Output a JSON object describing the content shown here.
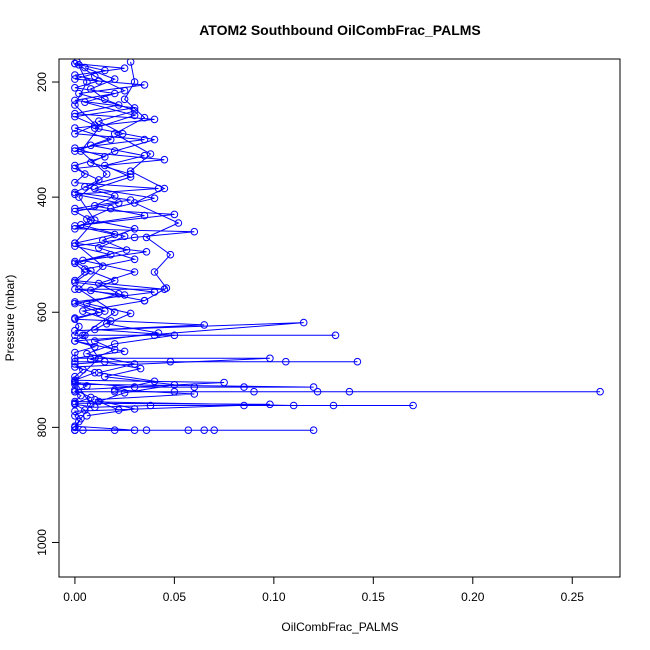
{
  "chart_data": {
    "type": "scatter",
    "title": "ATOM2 Southbound OilCombFrac_PALMS",
    "xlabel": "OilCombFrac_PALMS",
    "ylabel": "Pressure (mbar)",
    "xlim": [
      -0.008,
      0.274
    ],
    "ylim": [
      1060,
      160
    ],
    "y_reversed": true,
    "x_ticks": [
      0.0,
      0.05,
      0.1,
      0.15,
      0.2,
      0.25
    ],
    "x_tick_labels": [
      "0.00",
      "0.05",
      "0.10",
      "0.15",
      "0.20",
      "0.25"
    ],
    "y_ticks": [
      200,
      400,
      600,
      800,
      1000
    ],
    "y_tick_labels": [
      "200",
      "400",
      "600",
      "800",
      "1000"
    ],
    "grid": false,
    "legend": "none",
    "style": {
      "marker": "open-circle",
      "line": true,
      "color": "#0000ff"
    },
    "series": [
      {
        "points": [
          [
            0.0,
            805
          ],
          [
            0.004,
            805
          ],
          [
            0.02,
            805
          ],
          [
            0.036,
            805
          ],
          [
            0.12,
            805
          ],
          [
            0.07,
            805
          ],
          [
            0.057,
            805
          ],
          [
            0.065,
            805
          ],
          [
            0.0,
            805
          ],
          [
            0.002,
            790
          ],
          [
            0.0,
            780
          ],
          [
            0.005,
            770
          ],
          [
            0.0,
            760
          ],
          [
            0.01,
            765
          ],
          [
            0.038,
            762
          ],
          [
            0.085,
            762
          ],
          [
            0.17,
            762
          ],
          [
            0.13,
            762
          ],
          [
            0.11,
            762
          ],
          [
            0.0,
            755
          ],
          [
            0.003,
            745
          ],
          [
            0.0,
            738
          ],
          [
            0.02,
            738
          ],
          [
            0.05,
            738
          ],
          [
            0.09,
            738
          ],
          [
            0.122,
            738
          ],
          [
            0.138,
            738
          ],
          [
            0.264,
            738
          ],
          [
            0.0,
            738
          ],
          [
            0.006,
            728
          ],
          [
            0.0,
            722
          ],
          [
            0.03,
            730
          ],
          [
            0.06,
            730
          ],
          [
            0.085,
            730
          ],
          [
            0.12,
            730
          ],
          [
            0.0,
            725
          ],
          [
            0.0,
            712
          ],
          [
            0.004,
            700
          ],
          [
            0.0,
            690
          ],
          [
            0.015,
            686
          ],
          [
            0.048,
            686
          ],
          [
            0.106,
            686
          ],
          [
            0.142,
            686
          ],
          [
            0.0,
            686
          ],
          [
            0.0,
            670
          ],
          [
            0.01,
            660
          ],
          [
            0.0,
            650
          ],
          [
            0.005,
            640
          ],
          [
            0.04,
            640
          ],
          [
            0.131,
            640
          ],
          [
            0.0,
            640
          ],
          [
            0.002,
            625
          ],
          [
            0.0,
            610
          ],
          [
            0.012,
            600
          ],
          [
            0.0,
            585
          ],
          [
            0.025,
            570
          ],
          [
            0.0,
            560
          ],
          [
            0.045,
            560
          ],
          [
            0.0,
            545
          ],
          [
            0.005,
            530
          ],
          [
            0.0,
            515
          ],
          [
            0.018,
            500
          ],
          [
            0.0,
            485
          ],
          [
            0.03,
            470
          ],
          [
            0.06,
            460
          ],
          [
            0.0,
            455
          ],
          [
            0.008,
            440
          ],
          [
            0.0,
            425
          ],
          [
            0.022,
            410
          ],
          [
            0.0,
            395
          ],
          [
            0.042,
            385
          ],
          [
            0.0,
            375
          ],
          [
            0.005,
            360
          ],
          [
            0.0,
            345
          ],
          [
            0.015,
            330
          ],
          [
            0.0,
            315
          ],
          [
            0.035,
            300
          ],
          [
            0.0,
            290
          ],
          [
            0.01,
            275
          ],
          [
            0.0,
            260
          ],
          [
            0.03,
            245
          ],
          [
            0.0,
            232
          ],
          [
            0.02,
            220
          ],
          [
            0.0,
            210
          ],
          [
            0.012,
            198
          ],
          [
            0.0,
            188
          ],
          [
            0.025,
            176
          ],
          [
            0.0,
            168
          ]
        ]
      },
      {
        "points": [
          [
            0.0,
            168
          ],
          [
            0.015,
            180
          ],
          [
            0.0,
            195
          ],
          [
            0.035,
            205
          ],
          [
            0.002,
            220
          ],
          [
            0.022,
            240
          ],
          [
            0.0,
            255
          ],
          [
            0.04,
            265
          ],
          [
            0.0,
            280
          ],
          [
            0.018,
            300
          ],
          [
            0.0,
            320
          ],
          [
            0.045,
            335
          ],
          [
            0.0,
            350
          ],
          [
            0.012,
            370
          ],
          [
            0.0,
            392
          ],
          [
            0.028,
            405
          ],
          [
            0.0,
            420
          ],
          [
            0.05,
            430
          ],
          [
            0.0,
            450
          ],
          [
            0.02,
            465
          ],
          [
            0.0,
            480
          ],
          [
            0.036,
            495
          ],
          [
            0.0,
            512
          ],
          [
            0.008,
            528
          ],
          [
            0.0,
            548
          ],
          [
            0.04,
            565
          ],
          [
            0.0,
            582
          ],
          [
            0.015,
            598
          ],
          [
            0.0,
            612
          ],
          [
            0.065,
            622
          ],
          [
            0.0,
            632
          ],
          [
            0.115,
            618
          ],
          [
            0.0,
            650
          ],
          [
            0.025,
            668
          ],
          [
            0.0,
            680
          ],
          [
            0.098,
            680
          ],
          [
            0.0,
            695
          ],
          [
            0.01,
            705
          ],
          [
            0.0,
            718
          ],
          [
            0.075,
            722
          ],
          [
            0.0,
            735
          ],
          [
            0.008,
            748
          ],
          [
            0.0,
            758
          ],
          [
            0.098,
            760
          ],
          [
            0.0,
            772
          ],
          [
            0.003,
            785
          ],
          [
            0.0,
            798
          ],
          [
            0.03,
            805
          ],
          [
            0.0,
            805
          ]
        ]
      },
      {
        "points": [
          [
            0.002,
            170
          ],
          [
            0.01,
            190
          ],
          [
            0.025,
            215
          ],
          [
            0.005,
            235
          ],
          [
            0.03,
            258
          ],
          [
            0.01,
            280
          ],
          [
            0.04,
            300
          ],
          [
            0.02,
            320
          ],
          [
            0.008,
            340
          ],
          [
            0.028,
            360
          ],
          [
            0.005,
            382
          ],
          [
            0.02,
            398
          ],
          [
            0.01,
            415
          ],
          [
            0.035,
            432
          ],
          [
            0.003,
            448
          ],
          [
            0.025,
            468
          ],
          [
            0.012,
            488
          ],
          [
            0.03,
            508
          ],
          [
            0.005,
            525
          ],
          [
            0.02,
            545
          ],
          [
            0.008,
            562
          ],
          [
            0.035,
            580
          ],
          [
            0.004,
            598
          ],
          [
            0.018,
            615
          ],
          [
            0.01,
            630
          ],
          [
            0.05,
            640
          ],
          [
            0.02,
            655
          ],
          [
            0.006,
            672
          ],
          [
            0.03,
            690
          ],
          [
            0.012,
            705
          ],
          [
            0.04,
            720
          ],
          [
            0.02,
            735
          ],
          [
            0.06,
            742
          ],
          [
            0.01,
            752
          ],
          [
            0.03,
            768
          ],
          [
            0.006,
            780
          ]
        ]
      },
      {
        "points": [
          [
            0.005,
            175
          ],
          [
            0.02,
            195
          ],
          [
            0.008,
            212
          ],
          [
            0.015,
            230
          ],
          [
            0.03,
            250
          ],
          [
            0.012,
            268
          ],
          [
            0.024,
            290
          ],
          [
            0.008,
            310
          ],
          [
            0.035,
            328
          ],
          [
            0.015,
            345
          ],
          [
            0.028,
            365
          ],
          [
            0.01,
            385
          ],
          [
            0.04,
            402
          ],
          [
            0.018,
            420
          ],
          [
            0.006,
            438
          ],
          [
            0.03,
            455
          ],
          [
            0.014,
            475
          ],
          [
            0.026,
            492
          ],
          [
            0.004,
            510
          ],
          [
            0.03,
            530
          ],
          [
            0.012,
            550
          ],
          [
            0.022,
            568
          ],
          [
            0.006,
            585
          ],
          [
            0.028,
            602
          ],
          [
            0.016,
            620
          ],
          [
            0.042,
            636
          ],
          [
            0.01,
            650
          ],
          [
            0.02,
            665
          ],
          [
            0.008,
            682
          ],
          [
            0.033,
            698
          ],
          [
            0.015,
            712
          ],
          [
            0.05,
            726
          ],
          [
            0.025,
            740
          ],
          [
            0.012,
            755
          ],
          [
            0.022,
            770
          ]
        ]
      },
      {
        "points": [
          [
            0.001,
            165
          ],
          [
            0.006,
            200
          ],
          [
            0.0,
            240
          ],
          [
            0.012,
            280
          ],
          [
            0.003,
            320
          ],
          [
            0.016,
            360
          ],
          [
            0.002,
            400
          ],
          [
            0.01,
            440
          ],
          [
            0.0,
            480
          ],
          [
            0.014,
            520
          ],
          [
            0.002,
            560
          ],
          [
            0.02,
            600
          ],
          [
            0.004,
            640
          ],
          [
            0.012,
            680
          ],
          [
            0.0,
            720
          ],
          [
            0.008,
            760
          ],
          [
            0.0,
            800
          ]
        ]
      },
      {
        "points": [
          [
            0.028,
            165
          ],
          [
            0.03,
            200
          ],
          [
            0.025,
            230
          ],
          [
            0.035,
            262
          ],
          [
            0.02,
            290
          ],
          [
            0.038,
            325
          ],
          [
            0.028,
            355
          ],
          [
            0.045,
            385
          ],
          [
            0.03,
            410
          ],
          [
            0.052,
            445
          ],
          [
            0.036,
            470
          ],
          [
            0.048,
            500
          ],
          [
            0.04,
            530
          ],
          [
            0.046,
            558
          ],
          [
            0.035,
            580
          ]
        ]
      }
    ]
  }
}
